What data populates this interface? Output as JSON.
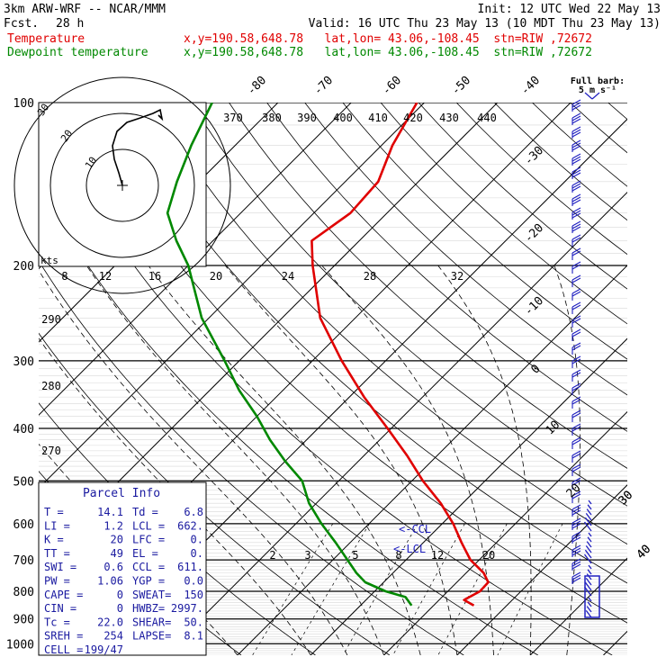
{
  "header": {
    "model": "3km ARW-WRF -- NCAR/MMM",
    "init": "Init: 12 UTC Wed 22 May 13",
    "fcst_label": "Fcst.",
    "fcst_value": "28 h",
    "valid": "Valid: 16 UTC Thu 23 May 13 (10 MDT Thu 23 May 13)",
    "line1_name": "Temperature",
    "line1_loc": "x,y=190.58,648.78   lat,lon= 43.06,-108.45  stn=RIW ,72672",
    "line2_name": "Dewpoint temperature",
    "line2_loc": "x,y=190.58,648.78   lat,lon= 43.06,-108.45  stn=RIW ,72672"
  },
  "colors": {
    "temperature": "#e00000",
    "dewpoint": "#008800",
    "barb": "#2020c0",
    "parcel_text": "#1a1aa0"
  },
  "chart_data": {
    "type": "line",
    "title": "",
    "ylabel": "",
    "pressure_levels": [
      "100",
      "200",
      "300",
      "400",
      "500",
      "600",
      "700",
      "800",
      "900",
      "1000"
    ],
    "isotherm_labels": [
      "-80",
      "-70",
      "-60",
      "-50",
      "-40",
      "-30",
      "-20",
      "-10",
      "0",
      "10",
      "20",
      "30",
      "40"
    ],
    "theta_labels": [
      "370",
      "380",
      "390",
      "400",
      "410",
      "420",
      "430",
      "440",
      "290",
      "280",
      "270"
    ],
    "mixing_ratio_labels": [
      "2",
      "3",
      "5",
      "8",
      "12",
      "20"
    ],
    "lcl_labels": [
      "<-CCL",
      "<-LCL"
    ],
    "barb_caption": [
      "Full barb:",
      "5 m s⁻¹"
    ],
    "series": [
      {
        "name": "Temperature",
        "pressure": [
          850,
          830,
          800,
          770,
          740,
          700,
          650,
          600,
          550,
          500,
          450,
          400,
          350,
          300,
          250,
          200,
          180,
          160,
          140,
          120,
          100
        ],
        "temp": [
          15.5,
          13.4,
          14.4,
          14.3,
          12.4,
          8.8,
          5.2,
          1.5,
          -3.0,
          -8.5,
          -14.0,
          -20.5,
          -28.0,
          -36.0,
          -44.8,
          -53.0,
          -56.5,
          -55.0,
          -55.5,
          -58.5,
          -61.0
        ]
      },
      {
        "name": "Dewpoint temperature",
        "pressure": [
          850,
          820,
          800,
          770,
          740,
          700,
          650,
          600,
          550,
          500,
          460,
          420,
          380,
          340,
          300,
          250,
          200,
          180,
          160,
          140,
          120,
          100
        ],
        "temp": [
          7.0,
          5.0,
          1.5,
          -2.5,
          -5.0,
          -8.0,
          -12.0,
          -16.5,
          -21.0,
          -25.0,
          -30.0,
          -35.0,
          -40.0,
          -46.0,
          -52.0,
          -61.0,
          -70.0,
          -75.0,
          -80.0,
          -83.0,
          -86.0,
          -89.0
        ]
      }
    ],
    "hodograph": {
      "speed_ring_labels": [
        "10",
        "20",
        "30"
      ],
      "speed_axis_labels": [
        "8",
        "12",
        "16",
        "20",
        "24",
        "28",
        "32"
      ],
      "speed_axis_unit": "kts"
    },
    "wind_profile_labels": [
      "30",
      "40"
    ]
  },
  "parcel": {
    "title": "Parcel Info",
    "rows": [
      [
        "T  =",
        "14.1",
        "Td =",
        "6.8"
      ],
      [
        "LI =",
        "1.2",
        "LCL =",
        "662."
      ],
      [
        "K  =",
        "20",
        "LFC =",
        "0."
      ],
      [
        "TT =",
        "49",
        "EL  =",
        "0."
      ],
      [
        "SWI =",
        "0.6",
        "CCL =",
        "611."
      ],
      [
        "PW =",
        "1.06",
        "YGP =",
        "0.0"
      ],
      [
        "CAPE =",
        "0",
        "SWEAT=",
        "150"
      ],
      [
        "CIN  =",
        "0",
        "HWBZ=",
        "2997."
      ],
      [
        "Tc   =",
        "22.0",
        "SHEAR=",
        "50."
      ],
      [
        "SREH =",
        "254",
        "LAPSE=",
        "8.1"
      ],
      [
        "CELL =",
        "199/47",
        "",
        ""
      ]
    ]
  }
}
